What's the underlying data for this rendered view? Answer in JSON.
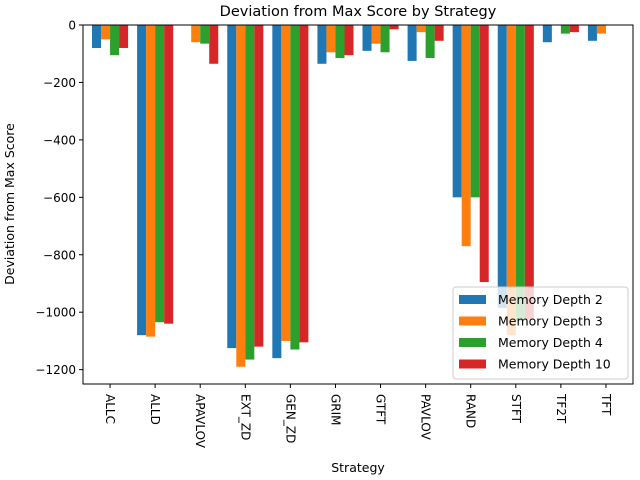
{
  "chart_data": {
    "type": "bar",
    "title": "Deviation from Max Score by Strategy",
    "xlabel": "Strategy",
    "ylabel": "Deviation from Max Score",
    "categories": [
      "ALLC",
      "ALLD",
      "APAVLOV",
      "EXT_ZD",
      "GEN_ZD",
      "GRIM",
      "GTFT",
      "PAVLOV",
      "RAND",
      "STFT",
      "TF2T",
      "TFT"
    ],
    "ylim": [
      -1250,
      0
    ],
    "yticks": [
      0,
      -200,
      -400,
      -600,
      -800,
      -1000,
      -1200
    ],
    "ytick_labels": [
      "0",
      "−200",
      "−400",
      "−600",
      "−800",
      "−1000",
      "−1200"
    ],
    "grid": false,
    "legend_position": "lower-right",
    "series": [
      {
        "name": "Memory Depth 2",
        "color": "#1f77b4",
        "values": [
          -80,
          -1080,
          0,
          -1125,
          -1160,
          -135,
          -90,
          -125,
          -600,
          -985,
          -60,
          -55
        ]
      },
      {
        "name": "Memory Depth 3",
        "color": "#ff7f0e",
        "values": [
          -50,
          -1085,
          -60,
          -1190,
          -1100,
          -95,
          -65,
          -25,
          -770,
          -1080,
          0,
          -30
        ]
      },
      {
        "name": "Memory Depth 4",
        "color": "#2ca02c",
        "values": [
          -105,
          -1035,
          -65,
          -1165,
          -1130,
          -115,
          -95,
          -115,
          -600,
          -1030,
          -30,
          0
        ]
      },
      {
        "name": "Memory Depth 10",
        "color": "#d62728",
        "values": [
          -80,
          -1040,
          -135,
          -1120,
          -1105,
          -105,
          -15,
          -55,
          -895,
          -1025,
          -25,
          0
        ]
      }
    ]
  }
}
